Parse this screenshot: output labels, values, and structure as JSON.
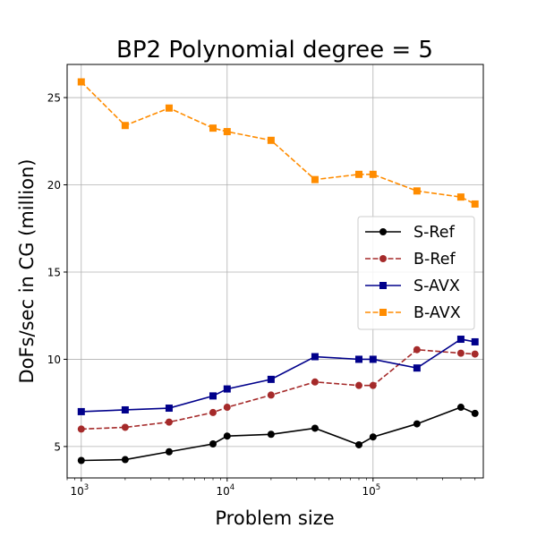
{
  "chart_data": {
    "type": "line",
    "title": "BP2 Polynomial degree = 5",
    "xlabel": "Problem size",
    "ylabel": "DoFs/sec in CG (million)",
    "xscale": "log",
    "xlim": [
      800,
      570000
    ],
    "ylim": [
      3.2,
      26.9
    ],
    "grid": true,
    "legend_position": "center-right",
    "x_ticks": [
      {
        "value": 1000,
        "base": "10",
        "exp": "3"
      },
      {
        "value": 10000,
        "base": "10",
        "exp": "4"
      },
      {
        "value": 100000,
        "base": "10",
        "exp": "5"
      }
    ],
    "y_ticks": [
      {
        "value": 5,
        "label": "5"
      },
      {
        "value": 10,
        "label": "10"
      },
      {
        "value": 15,
        "label": "15"
      },
      {
        "value": 20,
        "label": "20"
      },
      {
        "value": 25,
        "label": "25"
      }
    ],
    "x": [
      1000,
      2000,
      4000,
      8000,
      10000,
      20000,
      40000,
      80000,
      100000,
      200000,
      400000,
      500000
    ],
    "series": [
      {
        "name": "S-Ref",
        "color": "#000000",
        "dash": "solid",
        "marker": "circle",
        "values": [
          4.2,
          4.25,
          4.7,
          5.15,
          5.6,
          5.7,
          6.05,
          5.1,
          5.55,
          6.3,
          7.25,
          6.9
        ]
      },
      {
        "name": "B-Ref",
        "color": "#a52a2a",
        "dash": "dashed",
        "marker": "circle",
        "values": [
          6.0,
          6.1,
          6.4,
          6.95,
          7.25,
          7.95,
          8.7,
          8.5,
          8.5,
          10.55,
          10.35,
          10.3
        ]
      },
      {
        "name": "S-AVX",
        "color": "#00008b",
        "dash": "solid",
        "marker": "square",
        "values": [
          7.0,
          7.1,
          7.2,
          7.9,
          8.3,
          8.85,
          10.15,
          10.0,
          10.0,
          9.5,
          11.15,
          11.0
        ]
      },
      {
        "name": "B-AVX",
        "color": "#ff8c00",
        "dash": "dashed",
        "marker": "square",
        "values": [
          25.9,
          23.4,
          24.4,
          23.25,
          23.05,
          22.55,
          20.3,
          20.6,
          20.6,
          19.65,
          19.3,
          18.9
        ]
      }
    ]
  }
}
